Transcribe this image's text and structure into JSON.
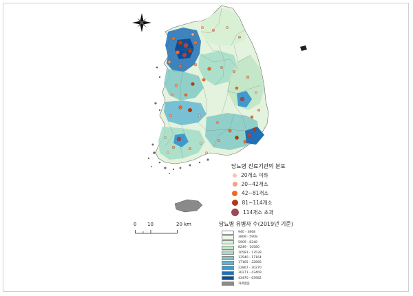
{
  "facility_legend": {
    "title": "당뇨병 진료기관의 분포",
    "items": [
      {
        "label": "20개소 이하",
        "color": "#f6c6b0"
      },
      {
        "label": "20~42개소",
        "color": "#f4a07a"
      },
      {
        "label": "42~81개소",
        "color": "#f06a25"
      },
      {
        "label": "81~114개소",
        "color": "#b23a10"
      },
      {
        "label": "114개소 초과",
        "color": "#9a4a50"
      }
    ]
  },
  "patient_legend": {
    "title": "당뇨병 유병자 수(2019년 기준)",
    "items": [
      {
        "label": "940 - 3868",
        "color": "#ffffff"
      },
      {
        "label": "3869 - 5908",
        "color": "#edf8ea"
      },
      {
        "label": "5909 - 8248",
        "color": "#d6f0d2"
      },
      {
        "label": "8249 - 10580",
        "color": "#bfe6c5"
      },
      {
        "label": "10581 - 13539",
        "color": "#a3dcc7"
      },
      {
        "label": "13540 - 17164",
        "color": "#82c9c5"
      },
      {
        "label": "17165 - 22866",
        "color": "#5db4d3"
      },
      {
        "label": "22867 - 30270",
        "color": "#3f9ad0"
      },
      {
        "label": "30271 - 43469",
        "color": "#2070b8"
      },
      {
        "label": "43470 - 63982",
        "color": "#0c4d97"
      },
      {
        "label": "자료없음",
        "color": "#8a8a8a"
      }
    ]
  },
  "scale_bar": {
    "ticks": [
      "0",
      "10",
      "20 km"
    ]
  },
  "north_arrow": {
    "icon": "compass-rose-icon"
  }
}
